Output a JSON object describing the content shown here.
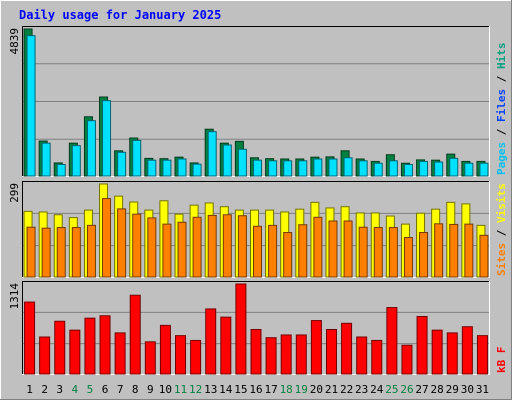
{
  "chart_data": {
    "type": "bar",
    "title": "Daily usage for January 2025",
    "days": [
      "1",
      "2",
      "3",
      "4",
      "5",
      "6",
      "7",
      "8",
      "9",
      "10",
      "11",
      "12",
      "13",
      "14",
      "15",
      "16",
      "17",
      "18",
      "19",
      "20",
      "21",
      "22",
      "23",
      "24",
      "25",
      "26",
      "27",
      "28",
      "29",
      "30",
      "31"
    ],
    "weekend_days": [
      "4",
      "5",
      "11",
      "12",
      "18",
      "19",
      "25",
      "26"
    ],
    "panels": [
      {
        "id": "hits-files-pages",
        "ymax_label": "4839",
        "ymax": 4839,
        "label_parts": [
          {
            "text": "Pages",
            "color": "#00c0f0"
          },
          {
            "text": " / ",
            "color": "#000000"
          },
          {
            "text": "Files",
            "color": "#0040ff"
          },
          {
            "text": " / ",
            "color": "#000000"
          },
          {
            "text": "Hits",
            "color": "#00a080"
          }
        ],
        "series": [
          {
            "name": "Hits",
            "color": "#008040",
            "values": [
              4839,
              1150,
              430,
              1080,
              1950,
              2600,
              830,
              1250,
              580,
              570,
              620,
              430,
              1540,
              1080,
              1140,
              600,
              570,
              560,
              560,
              620,
              630,
              830,
              560,
              480,
              700,
              420,
              530,
              520,
              720,
              480,
              480
            ]
          },
          {
            "name": "Files",
            "color": "#00e0ff",
            "values": [
              4620,
              1080,
              380,
              1000,
              1820,
              2480,
              780,
              1170,
              520,
              520,
              560,
              390,
              1460,
              1020,
              880,
              520,
              500,
              500,
              500,
              560,
              560,
              600,
              500,
              420,
              500,
              380,
              480,
              460,
              580,
              420,
              420
            ]
          }
        ]
      },
      {
        "id": "visits-sites",
        "ymax_label": "299",
        "ymax": 299,
        "label_parts": [
          {
            "text": "Sites",
            "color": "#ff8000"
          },
          {
            "text": " / ",
            "color": "#000000"
          },
          {
            "text": "Visits",
            "color": "#ffff00"
          }
        ],
        "series": [
          {
            "name": "Visits",
            "color": "#ffff00",
            "values": [
              211,
              209,
              200,
              191,
              215,
              299,
              260,
              241,
              215,
              245,
              202,
              231,
              238,
              226,
              215,
              215,
              215,
              209,
              218,
              240,
              222,
              226,
              206,
              206,
              196,
              170,
              205,
              218,
              240,
              235,
              166
            ]
          },
          {
            "name": "Sites",
            "color": "#ff8000",
            "values": [
              160,
              157,
              159,
              159,
              166,
              252,
              219,
              202,
              190,
              170,
              176,
              192,
              198,
              200,
              197,
              163,
              166,
              143,
              168,
              192,
              180,
              180,
              160,
              159,
              159,
              127,
              143,
              171,
              169,
              170,
              134
            ]
          }
        ]
      },
      {
        "id": "kbf",
        "ymax_label": "1314",
        "ymax": 1314,
        "label_parts": [
          {
            "text": "kB F",
            "color": "#ff0000"
          }
        ],
        "series": [
          {
            "name": "kB F",
            "color": "#ff0000",
            "values": [
              1050,
              540,
              770,
              640,
              815,
              850,
              600,
              1150,
              470,
              710,
              560,
              490,
              950,
              830,
              1314,
              650,
              530,
              570,
              570,
              780,
              650,
              740,
              540,
              490,
              970,
              420,
              840,
              640,
              600,
              690,
              560
            ]
          }
        ]
      }
    ]
  }
}
